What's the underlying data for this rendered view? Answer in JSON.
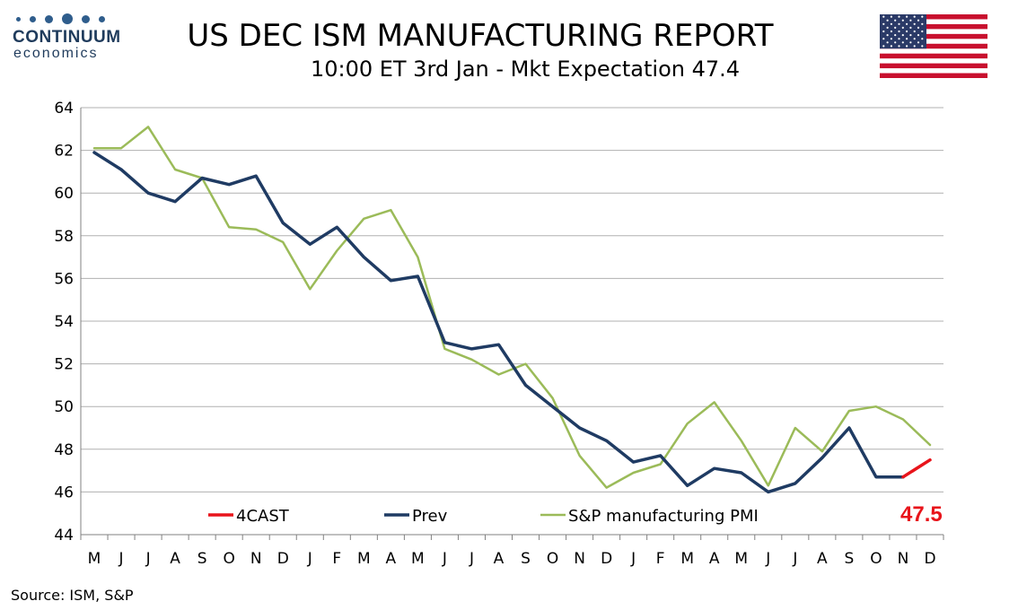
{
  "logo": {
    "name": "CONTINUUM",
    "sub": "economics"
  },
  "header": {
    "title": "US DEC ISM MANUFACTURING REPORT",
    "subtitle": "10:00 ET 3rd Jan - Mkt Expectation 47.4"
  },
  "source": "Source: ISM, S&P",
  "colors": {
    "forecast": "#e8141b",
    "prev": "#1f3b63",
    "pmi": "#9bbb59",
    "grid": "#b0b0b0"
  },
  "chart_data": {
    "type": "line",
    "categories": [
      "M",
      "J",
      "J",
      "A",
      "S",
      "O",
      "N",
      "D",
      "J",
      "F",
      "M",
      "A",
      "M",
      "J",
      "J",
      "A",
      "S",
      "O",
      "N",
      "D",
      "J",
      "F",
      "M",
      "A",
      "M",
      "J",
      "J",
      "A",
      "S",
      "O",
      "N",
      "D"
    ],
    "ylim": [
      44,
      64
    ],
    "yticks": [
      44,
      46,
      48,
      50,
      52,
      54,
      56,
      58,
      60,
      62,
      64
    ],
    "series": [
      {
        "name": "4CAST",
        "color": "#e8141b",
        "values": [
          null,
          null,
          null,
          null,
          null,
          null,
          null,
          null,
          null,
          null,
          null,
          null,
          null,
          null,
          null,
          null,
          null,
          null,
          null,
          null,
          null,
          null,
          null,
          null,
          null,
          null,
          null,
          null,
          null,
          null,
          46.7,
          47.5
        ]
      },
      {
        "name": "Prev",
        "color": "#1f3b63",
        "values": [
          61.9,
          61.1,
          60.0,
          59.6,
          60.7,
          60.4,
          60.8,
          58.6,
          57.6,
          58.4,
          57.0,
          55.9,
          56.1,
          53.0,
          52.7,
          52.9,
          51.0,
          50.0,
          49.0,
          48.4,
          47.4,
          47.7,
          46.3,
          47.1,
          46.9,
          46.0,
          46.4,
          47.6,
          49.0,
          46.7,
          46.7,
          null
        ]
      },
      {
        "name": "S&P manufacturing PMI",
        "color": "#9bbb59",
        "values": [
          62.1,
          62.1,
          63.1,
          61.1,
          60.7,
          58.4,
          58.3,
          57.7,
          55.5,
          57.3,
          58.8,
          59.2,
          57.0,
          52.7,
          52.2,
          51.5,
          52.0,
          50.4,
          47.7,
          46.2,
          46.9,
          47.3,
          49.2,
          50.2,
          48.4,
          46.3,
          49.0,
          47.9,
          49.8,
          50.0,
          49.4,
          48.2
        ]
      }
    ],
    "annotation": "47.5",
    "legend_position": "bottom-inside",
    "grid": true
  }
}
